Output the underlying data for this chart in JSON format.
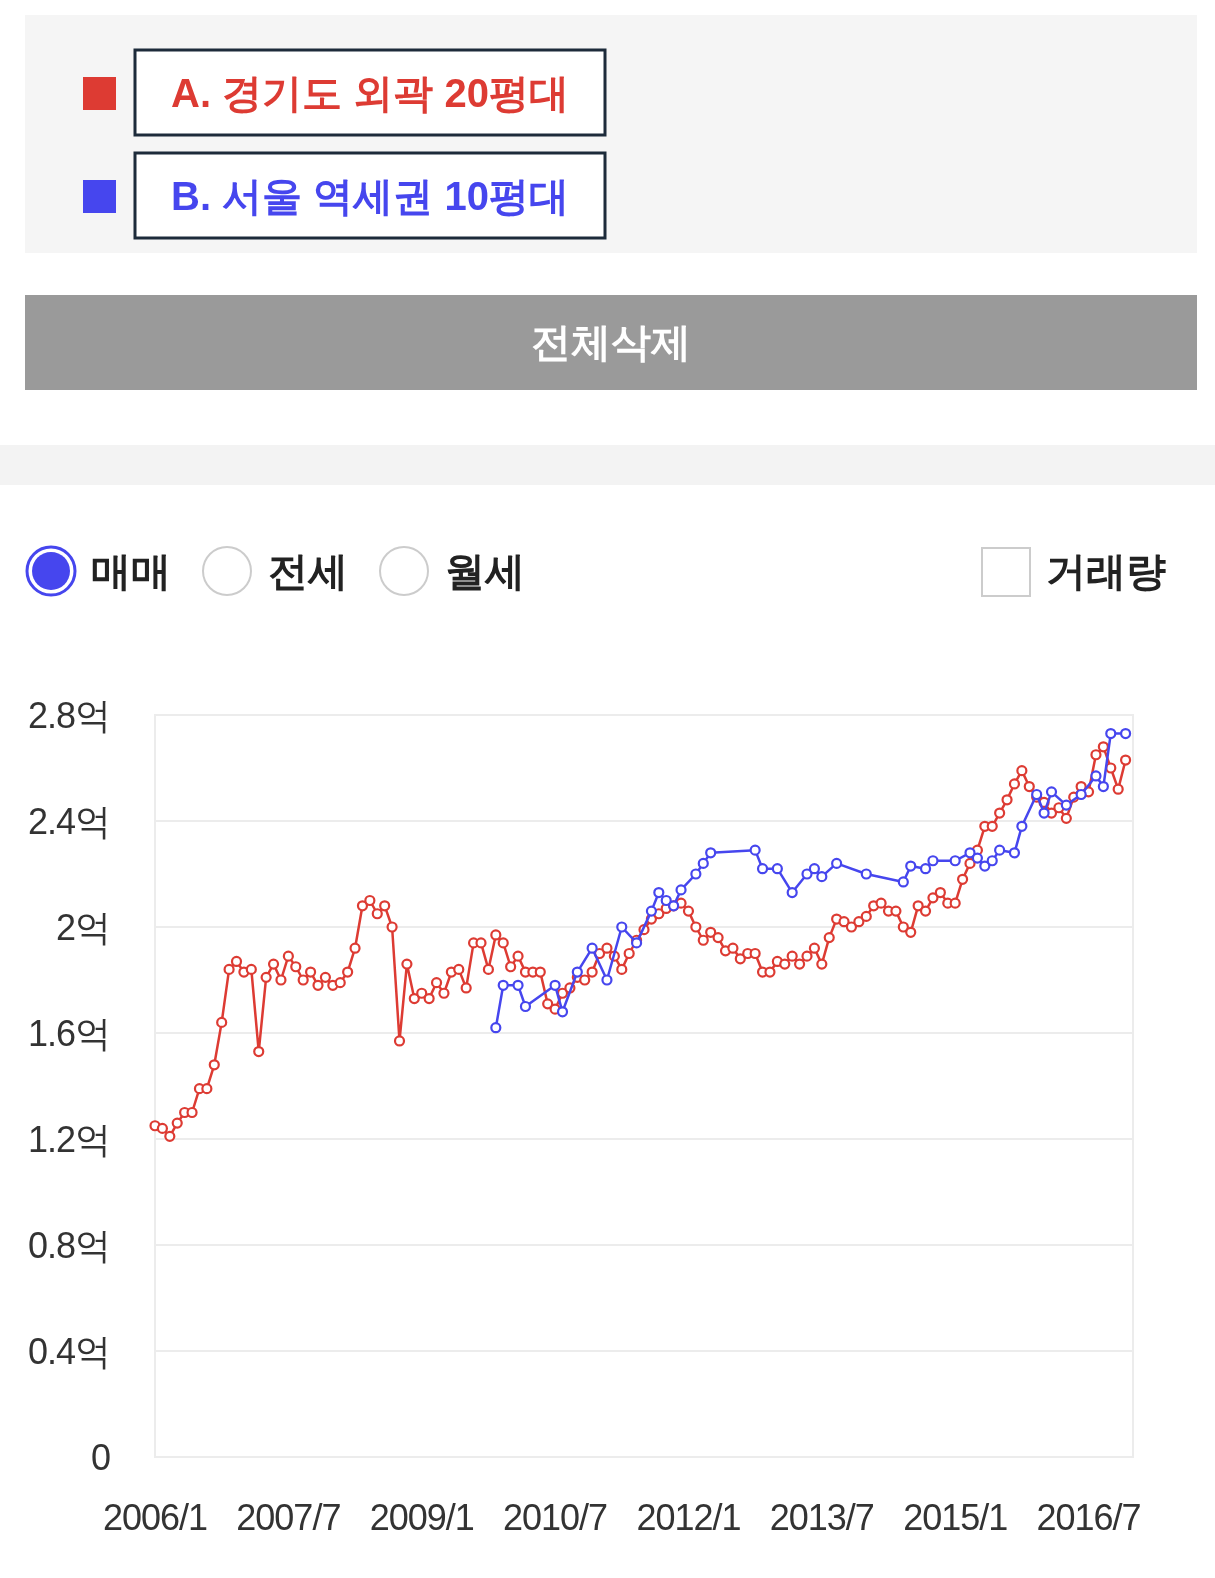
{
  "chart_data": {
    "type": "line",
    "legend": "top",
    "grid": "y",
    "marker": "circle",
    "line_style": "solid",
    "xlim": [
      "2006-01",
      "2017-01"
    ],
    "ylim": [
      0,
      2.8
    ],
    "xticks": [
      {
        "value": "2006-01",
        "label": "2006/1"
      },
      {
        "value": "2007-07",
        "label": "2007/7"
      },
      {
        "value": "2009-01",
        "label": "2009/1"
      },
      {
        "value": "2010-07",
        "label": "2010/7"
      },
      {
        "value": "2012-01",
        "label": "2012/1"
      },
      {
        "value": "2013-07",
        "label": "2013/7"
      },
      {
        "value": "2015-01",
        "label": "2015/1"
      },
      {
        "value": "2016-07",
        "label": "2016/7"
      }
    ],
    "yticks": [
      0,
      {
        "value": 0.4,
        "label": "0.4억"
      },
      {
        "value": 0.8,
        "label": "0.8억"
      },
      {
        "value": 1.2,
        "label": "1.2억"
      },
      {
        "value": 1.6,
        "label": "1.6억"
      },
      {
        "value": 2,
        "label": "2억"
      },
      {
        "value": 2.4,
        "label": "2.4억"
      },
      {
        "value": 2.8,
        "label": "2.8억"
      }
    ],
    "annotations": [
      "전체삭제",
      "매매",
      "전세",
      "월세",
      "거래량"
    ],
    "series": [
      {
        "name": "A. 경기도 외곽 20평대",
        "color": "#dd3b33",
        "x": [
          "2006-01",
          "2006-02",
          "2006-03",
          "2006-04",
          "2006-05",
          "2006-06",
          "2006-07",
          "2006-08",
          "2006-09",
          "2006-10",
          "2006-11",
          "2006-12",
          "2007-01",
          "2007-02",
          "2007-03",
          "2007-04",
          "2007-05",
          "2007-06",
          "2007-07",
          "2007-08",
          "2007-09",
          "2007-10",
          "2007-11",
          "2007-12",
          "2008-01",
          "2008-02",
          "2008-03",
          "2008-04",
          "2008-05",
          "2008-06",
          "2008-07",
          "2008-08",
          "2008-09",
          "2008-10",
          "2008-11",
          "2008-12",
          "2009-01",
          "2009-02",
          "2009-03",
          "2009-04",
          "2009-05",
          "2009-06",
          "2009-07",
          "2009-08",
          "2009-09",
          "2009-10",
          "2009-11",
          "2009-12",
          "2010-01",
          "2010-02",
          "2010-03",
          "2010-04",
          "2010-05",
          "2010-06",
          "2010-07",
          "2010-08",
          "2010-09",
          "2010-10",
          "2010-11",
          "2010-12",
          "2011-01",
          "2011-02",
          "2011-03",
          "2011-04",
          "2011-05",
          "2011-06",
          "2011-07",
          "2011-08",
          "2011-09",
          "2011-10",
          "2011-11",
          "2011-12",
          "2012-01",
          "2012-02",
          "2012-03",
          "2012-04",
          "2012-05",
          "2012-06",
          "2012-07",
          "2012-08",
          "2012-09",
          "2012-10",
          "2012-11",
          "2012-12",
          "2013-01",
          "2013-02",
          "2013-03",
          "2013-04",
          "2013-05",
          "2013-06",
          "2013-07",
          "2013-08",
          "2013-09",
          "2013-10",
          "2013-11",
          "2013-12",
          "2014-01",
          "2014-02",
          "2014-03",
          "2014-04",
          "2014-05",
          "2014-06",
          "2014-07",
          "2014-08",
          "2014-09",
          "2014-10",
          "2014-11",
          "2014-12",
          "2015-01",
          "2015-02",
          "2015-03",
          "2015-04",
          "2015-05",
          "2015-06",
          "2015-07",
          "2015-08",
          "2015-09",
          "2015-10",
          "2015-11",
          "2015-12",
          "2016-01",
          "2016-02",
          "2016-03",
          "2016-04",
          "2016-05",
          "2016-06",
          "2016-07",
          "2016-08",
          "2016-09",
          "2016-10",
          "2016-11",
          "2016-12"
        ],
        "values": [
          1.25,
          1.24,
          1.21,
          1.26,
          1.3,
          1.3,
          1.39,
          1.39,
          1.48,
          1.64,
          1.84,
          1.87,
          1.83,
          1.84,
          1.53,
          1.81,
          1.86,
          1.8,
          1.89,
          1.85,
          1.8,
          1.83,
          1.78,
          1.81,
          1.78,
          1.79,
          1.83,
          1.92,
          2.08,
          2.1,
          2.05,
          2.08,
          2.0,
          1.57,
          1.86,
          1.73,
          1.75,
          1.73,
          1.79,
          1.75,
          1.83,
          1.84,
          1.77,
          1.94,
          1.94,
          1.84,
          1.97,
          1.94,
          1.85,
          1.89,
          1.83,
          1.83,
          1.83,
          1.71,
          1.69,
          1.75,
          1.77,
          1.81,
          1.8,
          1.83,
          1.9,
          1.92,
          1.89,
          1.84,
          1.9,
          1.95,
          1.99,
          2.03,
          2.05,
          2.07,
          2.08,
          2.09,
          2.06,
          2.0,
          1.95,
          1.98,
          1.96,
          1.91,
          1.92,
          1.88,
          1.9,
          1.9,
          1.83,
          1.83,
          1.87,
          1.86,
          1.89,
          1.86,
          1.89,
          1.92,
          1.86,
          1.96,
          2.03,
          2.02,
          2.0,
          2.02,
          2.04,
          2.08,
          2.09,
          2.06,
          2.06,
          2.0,
          1.98,
          2.08,
          2.06,
          2.11,
          2.13,
          2.09,
          2.09,
          2.18,
          2.24,
          2.29,
          2.38,
          2.38,
          2.43,
          2.48,
          2.54,
          2.59,
          2.53,
          2.49,
          2.47,
          2.43,
          2.45,
          2.41,
          2.49,
          2.53,
          2.51,
          2.65,
          2.68,
          2.6,
          2.52,
          2.63
        ]
      },
      {
        "name": "B. 서울 역세권 10평대",
        "color": "#4646ee",
        "x": [
          "2009-11",
          "2009-12",
          "2010-02",
          "2010-03",
          "2010-07",
          "2010-08",
          "2010-10",
          "2010-12",
          "2011-02",
          "2011-04",
          "2011-06",
          "2011-08",
          "2011-09",
          "2011-10",
          "2011-11",
          "2011-12",
          "2012-02",
          "2012-03",
          "2012-04",
          "2012-10",
          "2012-11",
          "2013-01",
          "2013-03",
          "2013-05",
          "2013-06",
          "2013-07",
          "2013-09",
          "2014-01",
          "2014-06",
          "2014-07",
          "2014-09",
          "2014-10",
          "2015-01",
          "2015-03",
          "2015-04",
          "2015-05",
          "2015-06",
          "2015-07",
          "2015-09",
          "2015-10",
          "2015-12",
          "2016-01",
          "2016-02",
          "2016-04",
          "2016-06",
          "2016-08",
          "2016-09",
          "2016-10",
          "2016-12"
        ],
        "values": [
          1.62,
          1.78,
          1.78,
          1.7,
          1.78,
          1.68,
          1.83,
          1.92,
          1.8,
          2.0,
          1.94,
          2.06,
          2.13,
          2.1,
          2.08,
          2.14,
          2.2,
          2.24,
          2.28,
          2.29,
          2.22,
          2.22,
          2.13,
          2.2,
          2.22,
          2.19,
          2.24,
          2.2,
          2.17,
          2.23,
          2.22,
          2.25,
          2.25,
          2.28,
          2.26,
          2.23,
          2.25,
          2.29,
          2.28,
          2.38,
          2.5,
          2.43,
          2.51,
          2.46,
          2.5,
          2.57,
          2.53,
          2.73,
          2.73
        ]
      }
    ]
  }
}
